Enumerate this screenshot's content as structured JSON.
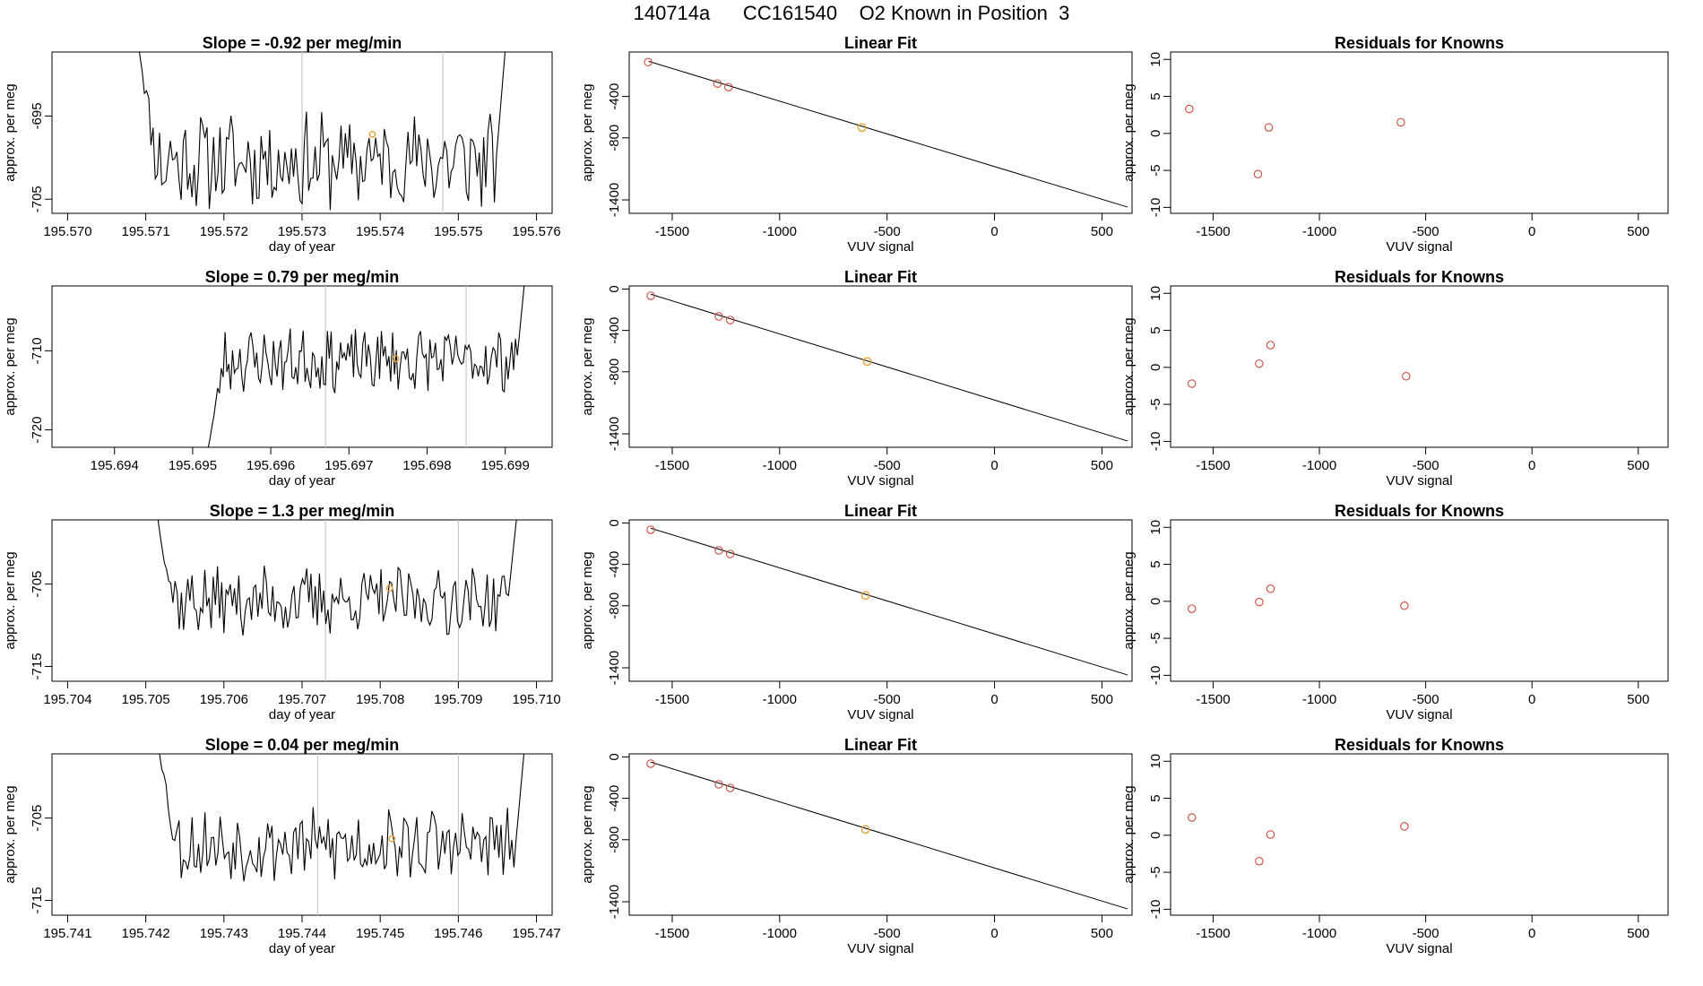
{
  "page": {
    "title": "140714a      CC161540    O2 Known in Position  3"
  },
  "colors": {
    "trace": "#000000",
    "highlight": "#e6a23c",
    "residual": "#cc4b3d",
    "vline": "#c8c8c8",
    "frame": "#000000"
  },
  "chart_data": [
    {
      "type": "line",
      "title": "Slope =  -0.92  per meg/min",
      "xlabel": "day of year",
      "ylabel": "approx. per meg",
      "xlim": [
        195.5698,
        195.5762
      ],
      "ylim": [
        -706.7,
        -687.3
      ],
      "xticks": [
        "195.570",
        "195.571",
        "195.572",
        "195.573",
        "195.574",
        "195.575",
        "195.576"
      ],
      "yticks": [
        "-705",
        "-695"
      ],
      "x_start": 195.5709,
      "x_end": 195.5756,
      "y_start": -686.0,
      "y_end": -687.0,
      "y_mean": -700.4,
      "y_amp": 5.0,
      "seed": 11,
      "vlines": [
        195.573,
        195.5748
      ],
      "highlight_point": {
        "x": 195.5739,
        "y": -697.2
      }
    },
    {
      "type": "line",
      "title": "Linear Fit",
      "xlabel": "VUV signal",
      "ylabel": "approx. per meg",
      "xlim": [
        -1700,
        640
      ],
      "ylim": [
        -1530,
        30
      ],
      "xticks": [
        "-1500",
        "-1000",
        "-500",
        "0",
        "500"
      ],
      "yticks": [
        "-400",
        "-800",
        "-1400"
      ],
      "line": [
        [
          -1610,
          -60
        ],
        [
          620,
          -1470
        ]
      ],
      "points": [
        {
          "x": -1612,
          "y": -68
        },
        {
          "x": -1289,
          "y": -275
        },
        {
          "x": -1238,
          "y": -310
        }
      ],
      "highlight_point": {
        "x": -617,
        "y": -700
      }
    },
    {
      "type": "scatter",
      "title": "Residuals for Knowns",
      "xlabel": "VUV signal",
      "ylabel": "approx. per meg",
      "xlim": [
        -1700,
        640
      ],
      "ylim": [
        -10.8,
        11
      ],
      "xticks": [
        "-1500",
        "-1000",
        "-500",
        "0",
        "500"
      ],
      "yticks": [
        "-10",
        "-5",
        "0",
        "5",
        "10"
      ],
      "points": [
        {
          "x": -1612,
          "y": 3.3
        },
        {
          "x": -1289,
          "y": -5.5
        },
        {
          "x": -1238,
          "y": 0.8
        },
        {
          "x": -617,
          "y": 1.5
        }
      ]
    },
    {
      "type": "line",
      "title": "Slope =  0.79  per meg/min",
      "xlabel": "day of year",
      "ylabel": "approx. per meg",
      "xlim": [
        195.6932,
        195.6996
      ],
      "ylim": [
        -722.2,
        -701.8
      ],
      "xticks": [
        "195.694",
        "195.695",
        "195.696",
        "195.697",
        "195.698",
        "195.699"
      ],
      "yticks": [
        "-720",
        "-710"
      ],
      "x_start": 195.6952,
      "x_end": 195.69925,
      "y_start": -722.2,
      "y_end": -701.0,
      "y_mean": -711.2,
      "y_amp": 3.4,
      "seed": 23,
      "vlines": [
        195.6967,
        195.6985
      ],
      "highlight_point": {
        "x": 195.6976,
        "y": -711.0
      }
    },
    {
      "type": "line",
      "title": "Linear Fit",
      "xlabel": "VUV signal",
      "ylabel": "approx. per meg",
      "xlim": [
        -1700,
        640
      ],
      "ylim": [
        -1530,
        30
      ],
      "xticks": [
        "-1500",
        "-1000",
        "-500",
        "0",
        "500"
      ],
      "yticks": [
        "0",
        "-400",
        "-800",
        "-1400"
      ],
      "line": [
        [
          -1600,
          -50
        ],
        [
          620,
          -1470
        ]
      ],
      "points": [
        {
          "x": -1600,
          "y": -65
        },
        {
          "x": -1283,
          "y": -265
        },
        {
          "x": -1230,
          "y": -300
        }
      ],
      "highlight_point": {
        "x": -592,
        "y": -700
      }
    },
    {
      "type": "scatter",
      "title": "Residuals for Knowns",
      "xlabel": "VUV signal",
      "ylabel": "approx. per meg",
      "xlim": [
        -1700,
        640
      ],
      "ylim": [
        -10.8,
        11
      ],
      "xticks": [
        "-1500",
        "-1000",
        "-500",
        "0",
        "500"
      ],
      "yticks": [
        "-10",
        "-5",
        "0",
        "5",
        "10"
      ],
      "points": [
        {
          "x": -1600,
          "y": -2.2
        },
        {
          "x": -1283,
          "y": 0.5
        },
        {
          "x": -1230,
          "y": 3.0
        },
        {
          "x": -592,
          "y": -1.2
        }
      ]
    },
    {
      "type": "line",
      "title": "Slope =  1.3  per meg/min",
      "xlabel": "day of year",
      "ylabel": "approx. per meg",
      "xlim": [
        195.7038,
        195.7102
      ],
      "ylim": [
        -716.8,
        -697.2
      ],
      "xticks": [
        "195.704",
        "195.705",
        "195.706",
        "195.707",
        "195.708",
        "195.709",
        "195.710"
      ],
      "yticks": [
        "-705",
        "-715"
      ],
      "x_start": 195.70513,
      "x_end": 195.70975,
      "y_start": -696.0,
      "y_end": -696.5,
      "y_mean": -707.0,
      "y_amp": 3.6,
      "seed": 37,
      "vlines": [
        195.7073,
        195.709
      ],
      "highlight_point": {
        "x": 195.70812,
        "y": -705.5
      }
    },
    {
      "type": "line",
      "title": "Linear Fit",
      "xlabel": "VUV signal",
      "ylabel": "approx. per meg",
      "xlim": [
        -1700,
        640
      ],
      "ylim": [
        -1530,
        30
      ],
      "xticks": [
        "-1500",
        "-1000",
        "-500",
        "0",
        "500"
      ],
      "yticks": [
        "0",
        "-400",
        "-800",
        "-1400"
      ],
      "line": [
        [
          -1600,
          -50
        ],
        [
          620,
          -1470
        ]
      ],
      "points": [
        {
          "x": -1600,
          "y": -65
        },
        {
          "x": -1283,
          "y": -265
        },
        {
          "x": -1230,
          "y": -300
        }
      ],
      "highlight_point": {
        "x": -600,
        "y": -700
      }
    },
    {
      "type": "scatter",
      "title": "Residuals for Knowns",
      "xlabel": "VUV signal",
      "ylabel": "approx. per meg",
      "xlim": [
        -1700,
        640
      ],
      "ylim": [
        -10.8,
        11
      ],
      "xticks": [
        "-1500",
        "-1000",
        "-500",
        "0",
        "500"
      ],
      "yticks": [
        "-10",
        "-5",
        "0",
        "5",
        "10"
      ],
      "points": [
        {
          "x": -1600,
          "y": -1.0
        },
        {
          "x": -1283,
          "y": -0.1
        },
        {
          "x": -1230,
          "y": 1.7
        },
        {
          "x": -600,
          "y": -0.6
        }
      ]
    },
    {
      "type": "line",
      "title": "Slope =  0.04  per meg/min",
      "xlabel": "day of year",
      "ylabel": "approx. per meg",
      "xlim": [
        195.7408,
        195.7472
      ],
      "ylim": [
        -716.8,
        -697.2
      ],
      "xticks": [
        "195.741",
        "195.742",
        "195.743",
        "195.744",
        "195.745",
        "195.746",
        "195.747"
      ],
      "yticks": [
        "-705",
        "-715"
      ],
      "x_start": 195.74215,
      "x_end": 195.74685,
      "y_start": -695.5,
      "y_end": -696.0,
      "y_mean": -708.3,
      "y_amp": 3.8,
      "seed": 53,
      "vlines": [
        195.7442,
        195.746
      ],
      "highlight_point": {
        "x": 195.74515,
        "y": -707.5
      }
    },
    {
      "type": "line",
      "title": "Linear Fit",
      "xlabel": "VUV signal",
      "ylabel": "approx. per meg",
      "xlim": [
        -1700,
        640
      ],
      "ylim": [
        -1530,
        30
      ],
      "xticks": [
        "-1500",
        "-1000",
        "-500",
        "0",
        "500"
      ],
      "yticks": [
        "0",
        "-400",
        "-800",
        "-1400"
      ],
      "line": [
        [
          -1600,
          -50
        ],
        [
          620,
          -1470
        ]
      ],
      "points": [
        {
          "x": -1600,
          "y": -65
        },
        {
          "x": -1283,
          "y": -265
        },
        {
          "x": -1230,
          "y": -300
        }
      ],
      "highlight_point": {
        "x": -600,
        "y": -700
      }
    },
    {
      "type": "scatter",
      "title": "Residuals for Knowns",
      "xlabel": "VUV signal",
      "ylabel": "approx. per meg",
      "xlim": [
        -1700,
        640
      ],
      "ylim": [
        -10.8,
        11
      ],
      "xticks": [
        "-1500",
        "-1000",
        "-500",
        "0",
        "500"
      ],
      "yticks": [
        "-10",
        "-5",
        "0",
        "5",
        "10"
      ],
      "points": [
        {
          "x": -1600,
          "y": 2.4
        },
        {
          "x": -1283,
          "y": -3.5
        },
        {
          "x": -1230,
          "y": 0.1
        },
        {
          "x": -600,
          "y": 1.2
        }
      ]
    }
  ]
}
